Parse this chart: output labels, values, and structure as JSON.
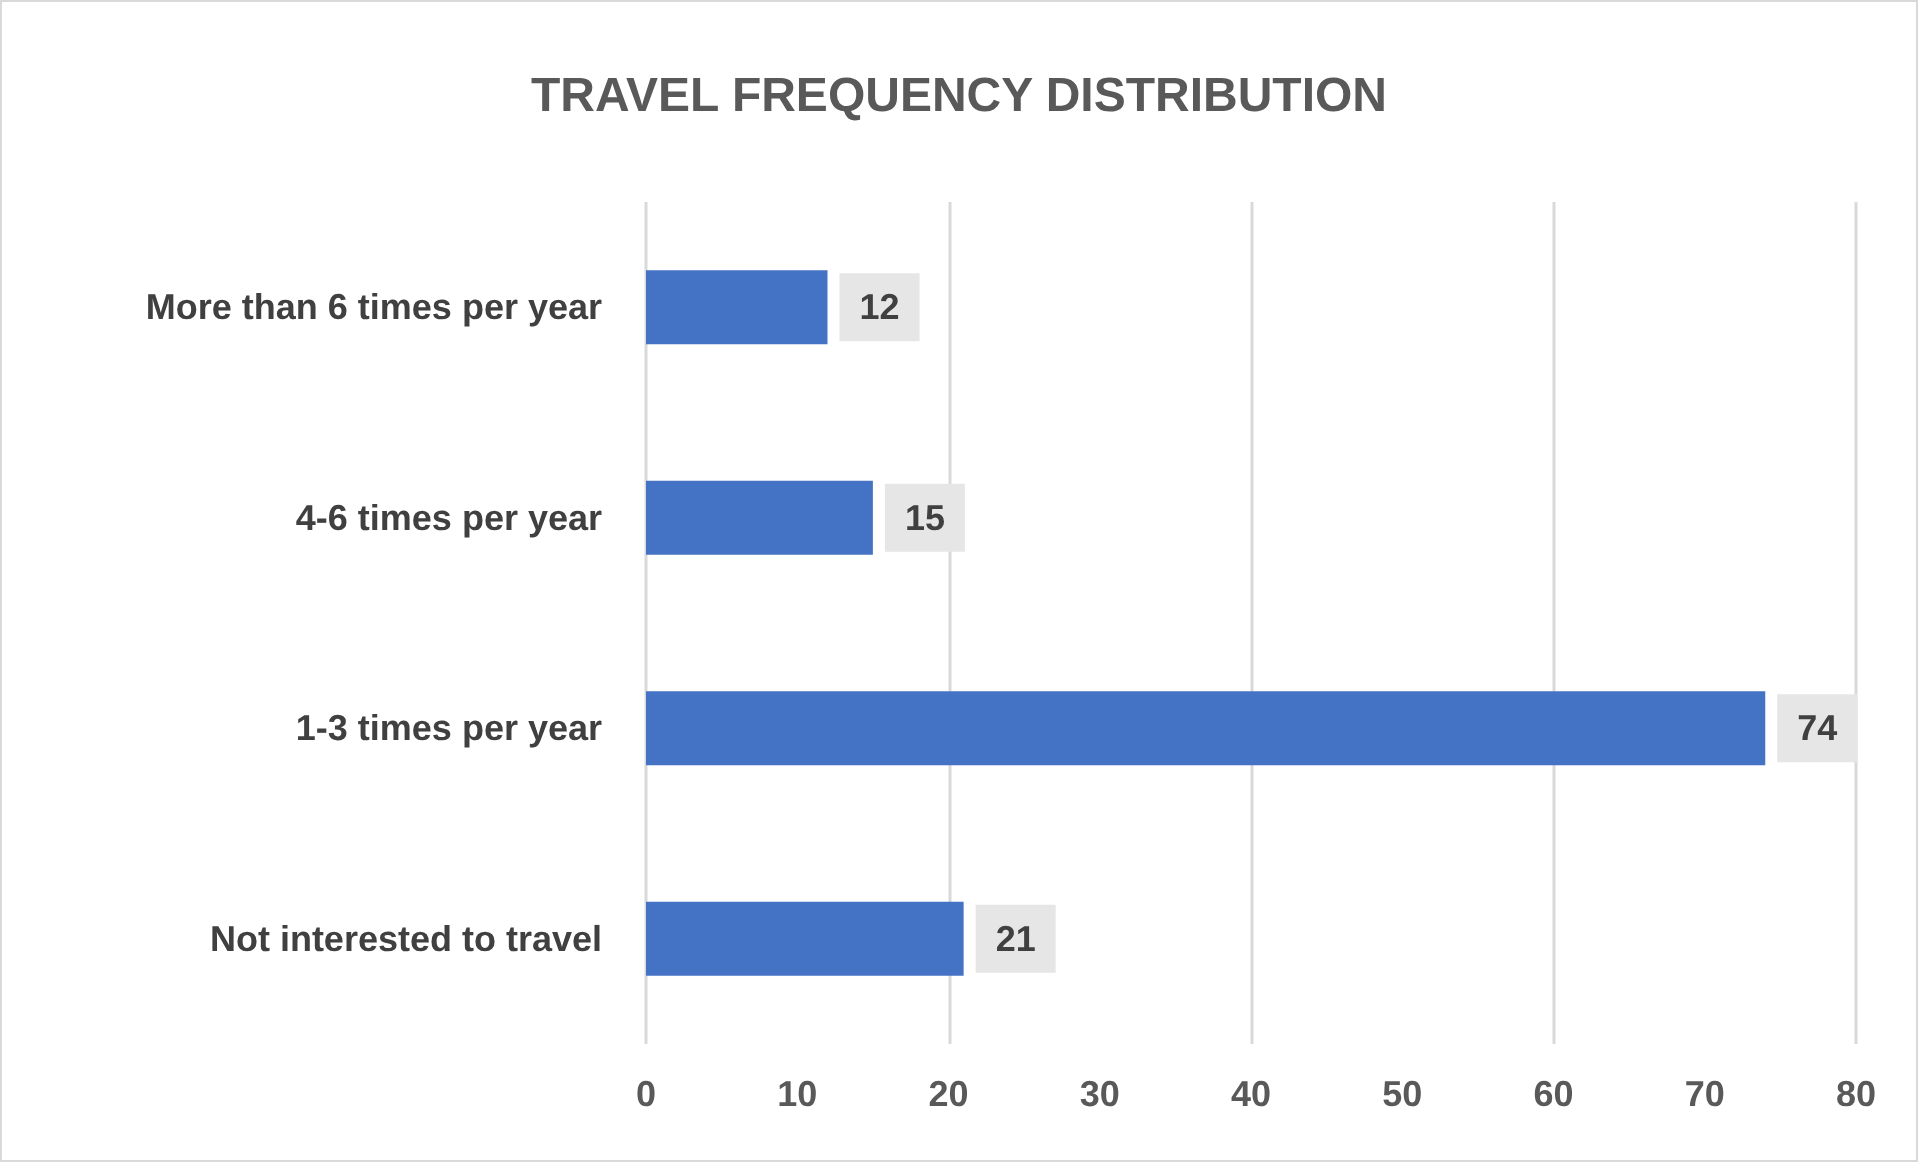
{
  "chart_data": {
    "type": "bar",
    "orientation": "horizontal",
    "title": "TRAVEL FREQUENCY DISTRIBUTION",
    "categories": [
      "More than 6 times per year",
      "4-6 times per year",
      "1-3 times per year",
      "Not interested to travel"
    ],
    "values": [
      12,
      15,
      74,
      21
    ],
    "color": "#4472c4",
    "xlim": [
      0,
      80
    ],
    "xticks": [
      0,
      10,
      20,
      30,
      40,
      50,
      60,
      70,
      80
    ],
    "grid": "x",
    "data_labels": true
  }
}
